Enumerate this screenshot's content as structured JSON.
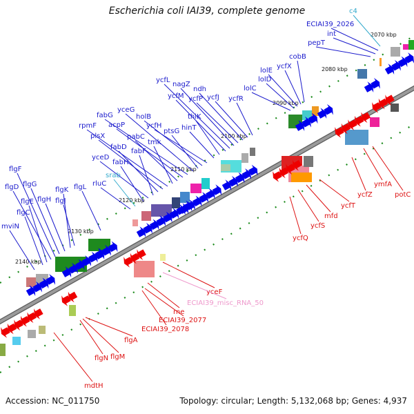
{
  "title": "Escherichia coli IAI39, complete genome",
  "footer": {
    "accession": "Accession: NC_011750",
    "summary": "Topology: circular; Length: 5,132,068 bp; Genes: 4,937"
  },
  "colors": {
    "forward_label": "#1a1acc",
    "reverse_label": "#dd1111",
    "rna_label": "#33aacc",
    "misc_rna_label": "#ee99cc",
    "forward_arrow": "#0000ee",
    "reverse_arrow": "#ee0000",
    "backbone": "#999999"
  },
  "kbp_ticks": [
    "2070 kbp",
    "2080 kbp",
    "2090 kbp",
    "2100 kbp",
    "2110 kbp",
    "2120 kbp",
    "2130 kbp",
    "2140 kbp"
  ],
  "forward_genes": [
    "c4",
    "ECIAI39_2026",
    "int",
    "pepT",
    "cobB",
    "ycfX",
    "lolE",
    "lolD",
    "lolC",
    "ycfR",
    "ycfJ",
    "ndh",
    "ycfP",
    "nagZ",
    "ycfL",
    "ycfM",
    "thiK",
    "hinT",
    "ycfH",
    "holB",
    "ptsG",
    "yceG",
    "fabG",
    "acpP",
    "pabC",
    "tmk",
    "rpmF",
    "plsX",
    "fabD",
    "fabF",
    "yceD",
    "fabH",
    "srab",
    "rluC",
    "flgF",
    "flgG",
    "flgK",
    "flgL",
    "flgD",
    "flgH",
    "flgJ",
    "flgE",
    "flgC",
    "mviN"
  ],
  "reverse_genes": [
    "ymfA",
    "potC",
    "ycfZ",
    "ycfT",
    "mfd",
    "ycfS",
    "ycfQ",
    "yceF",
    "ECIAI39_misc_RNA_50",
    "rne",
    "ECIAI39_2077",
    "ECIAI39_2078",
    "flgA",
    "flgN",
    "flgM",
    "mdtH"
  ]
}
